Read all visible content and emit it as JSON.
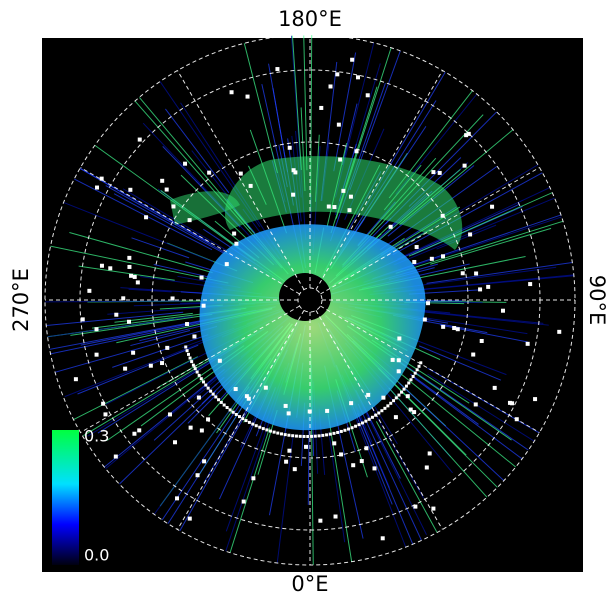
{
  "map": {
    "longitude_labels": {
      "top": "180°E",
      "right": "90°E",
      "bottom": "0°E",
      "left": "270°E"
    },
    "colorbar": {
      "ticks": [
        {
          "value": 0.3,
          "label": "0.3"
        },
        {
          "value": 0,
          "label": "0.0"
        }
      ]
    }
  }
}
